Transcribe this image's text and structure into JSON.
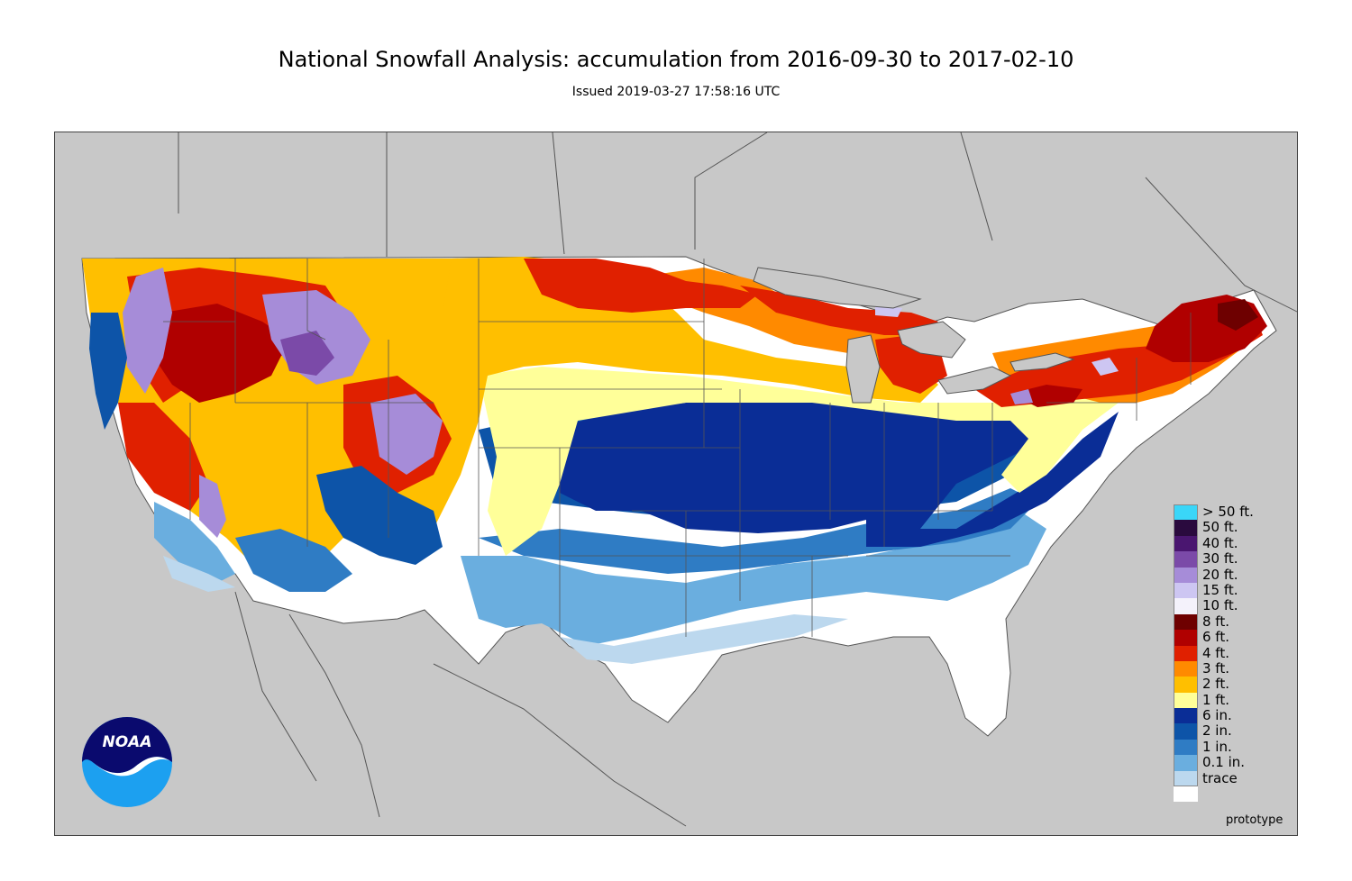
{
  "header": {
    "title": "National Snowfall Analysis: accumulation from 2016-09-30 to 2017-02-10",
    "issued": "Issued 2019-03-27 17:58:16 UTC"
  },
  "map": {
    "background_color": "#c8c8c8",
    "no_snow_color": "#ffffff",
    "outline_color": "#555555",
    "footer_note": "prototype"
  },
  "legend": {
    "items": [
      {
        "label": "> 50 ft.",
        "color": "#3ad6f8"
      },
      {
        "label": "50 ft.",
        "color": "#2a0a3e"
      },
      {
        "label": "40 ft.",
        "color": "#4a1670"
      },
      {
        "label": "30 ft.",
        "color": "#7b4aa8"
      },
      {
        "label": "20 ft.",
        "color": "#a68cd8"
      },
      {
        "label": "15 ft.",
        "color": "#cdc6f2"
      },
      {
        "label": "10 ft.",
        "color": "#f4f2fb"
      },
      {
        "label": "8 ft.",
        "color": "#6e0000"
      },
      {
        "label": "6 ft.",
        "color": "#b00000"
      },
      {
        "label": "4 ft.",
        "color": "#e02000"
      },
      {
        "label": "3 ft.",
        "color": "#ff8a00"
      },
      {
        "label": "2 ft.",
        "color": "#ffbf00"
      },
      {
        "label": "1 ft.",
        "color": "#ffff99"
      },
      {
        "label": "6 in.",
        "color": "#0a2d96"
      },
      {
        "label": "2 in.",
        "color": "#0d54a8"
      },
      {
        "label": "1 in.",
        "color": "#2f7cc4"
      },
      {
        "label": "0.1 in.",
        "color": "#6aaedf"
      },
      {
        "label": "trace",
        "color": "#bcd8ee"
      },
      {
        "label": "",
        "color": "#ffffff"
      }
    ]
  },
  "logo": {
    "text": "NOAA",
    "dark_color": "#0a0a6e",
    "light_color": "#1ca0f0"
  }
}
